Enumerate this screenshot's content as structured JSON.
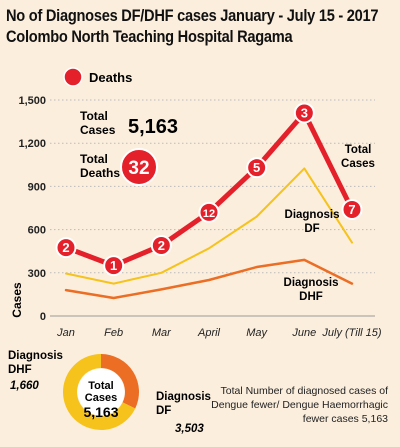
{
  "title": "No of Diagnoses DF/DHF cases January - July 15 - 2017",
  "subtitle": "Colombo North Teaching Hospital Ragama",
  "legend_label": "Deaths",
  "totals": {
    "cases_label": [
      "Total",
      "Cases"
    ],
    "cases_value": "5,163",
    "deaths_label": [
      "Total",
      "Deaths"
    ],
    "deaths_value": "32"
  },
  "labels": {
    "total_cases": [
      "Total",
      "Cases"
    ],
    "df": [
      "Diagnosis",
      "DF"
    ],
    "dhf": [
      "Diagnosis",
      "DHF"
    ]
  },
  "colors": {
    "total": "#e4202b",
    "df": "#f6c21c",
    "dhf": "#ec6d24",
    "background": "#fbeedd"
  },
  "chart_data": [
    {
      "type": "line",
      "categories": [
        "Jan",
        "Feb",
        "Mar",
        "April",
        "May",
        "June",
        "July (Till 15)"
      ],
      "ylabel": "Cases",
      "ylim": [
        0,
        1500
      ],
      "yticks": [
        "0",
        "300",
        "600",
        "900",
        "1,200",
        "1,500"
      ],
      "grid": true,
      "series": [
        {
          "name": "Total Cases",
          "values": [
            475,
            350,
            490,
            720,
            1030,
            1410,
            740
          ],
          "deaths": [
            "2",
            "1",
            "2",
            "12",
            "5",
            "3",
            "7"
          ]
        },
        {
          "name": "Diagnosis DF",
          "values": [
            295,
            225,
            300,
            470,
            690,
            1025,
            510
          ]
        },
        {
          "name": "Diagnosis DHF",
          "values": [
            180,
            125,
            185,
            250,
            340,
            390,
            225
          ]
        }
      ]
    },
    {
      "type": "pie",
      "title": "Total Cases",
      "total": "5,163",
      "slices": [
        {
          "name": "Diagnosis DHF",
          "value": 1660,
          "label": "1,660"
        },
        {
          "name": "Diagnosis DF",
          "value": 3503,
          "label": "3,503"
        }
      ]
    }
  ],
  "note": "Total Number of diagnosed cases of Dengue fewer/ Dengue Haemorrhagic fewer cases 5,163"
}
